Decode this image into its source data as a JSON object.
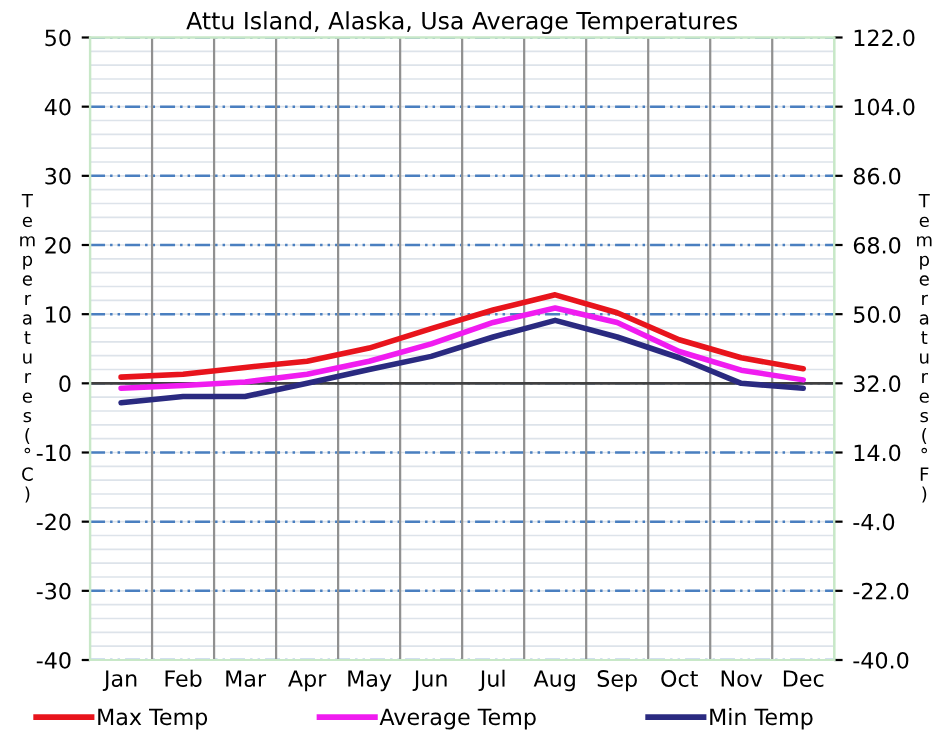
{
  "chart_data": {
    "type": "line",
    "title": "Attu Island, Alaska, Usa Average Temperatures",
    "categories": [
      "Jan",
      "Feb",
      "Mar",
      "Apr",
      "May",
      "Jun",
      "Jul",
      "Aug",
      "Sep",
      "Oct",
      "Nov",
      "Dec"
    ],
    "series": [
      {
        "name": "Max Temp",
        "color": "#e8141c",
        "values": [
          0.9,
          1.3,
          2.3,
          3.2,
          5.1,
          7.9,
          10.6,
          12.8,
          10.2,
          6.3,
          3.7,
          2.1
        ]
      },
      {
        "name": "Average Temp",
        "color": "#f01cf0",
        "values": [
          -0.7,
          -0.3,
          0.2,
          1.3,
          3.2,
          5.7,
          8.8,
          10.9,
          8.8,
          4.6,
          1.9,
          0.5
        ]
      },
      {
        "name": "Min Temp",
        "color": "#2a2a80",
        "values": [
          -2.8,
          -1.9,
          -1.9,
          0,
          2.0,
          3.9,
          6.7,
          9.1,
          6.7,
          3.7,
          0,
          -0.7
        ]
      }
    ],
    "ylabel": "Temperatures (°C)",
    "y2label": "Temperatures (°F)",
    "ylim": [
      -40,
      50
    ],
    "yticks": [
      -40,
      -30,
      -20,
      -10,
      0,
      10,
      20,
      30,
      40,
      50
    ],
    "y2lim": [
      -40,
      122
    ],
    "y2ticks": [
      {
        "value": -40,
        "label": "-40.0"
      },
      {
        "value": -22,
        "label": "-22.0"
      },
      {
        "value": -4,
        "label": "-4.0"
      },
      {
        "value": 14,
        "label": "14.0"
      },
      {
        "value": 32,
        "label": "32.0"
      },
      {
        "value": 50,
        "label": "50.0"
      },
      {
        "value": 68,
        "label": "68.0"
      },
      {
        "value": 86,
        "label": "86.0"
      },
      {
        "value": 104,
        "label": "104.0"
      },
      {
        "value": 122,
        "label": "122.0"
      }
    ],
    "ref_lines": [
      {
        "axis": "y",
        "value": 0,
        "color": "#404040",
        "line_style": "solid"
      }
    ],
    "grid": true,
    "legend": "bottom",
    "marker": "none",
    "line_style": "solid"
  }
}
